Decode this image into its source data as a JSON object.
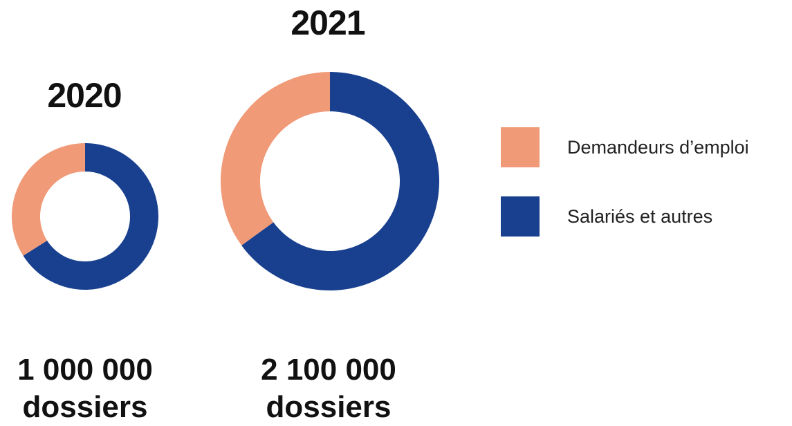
{
  "chart_data": {
    "type": "pie",
    "legend_placement": "right",
    "legend": [
      {
        "label": "Demandeurs d’emploi",
        "color": "#F09A78"
      },
      {
        "label": "Salariés et autres",
        "color": "#18408F"
      }
    ],
    "charts": [
      {
        "title": "2020",
        "total_line1": "1 000 000",
        "total_line2": "dossiers",
        "total": 1000000,
        "slices": [
          {
            "label": "Demandeurs d’emploi",
            "value": 0.34
          },
          {
            "label": "Salariés et autres",
            "value": 0.66
          }
        ]
      },
      {
        "title": "2021",
        "total_line1": "2 100 000",
        "total_line2": "dossiers",
        "total": 2100000,
        "slices": [
          {
            "label": "Demandeurs d’emploi",
            "value": 0.35
          },
          {
            "label": "Salariés et autres",
            "value": 0.65
          }
        ]
      }
    ]
  }
}
